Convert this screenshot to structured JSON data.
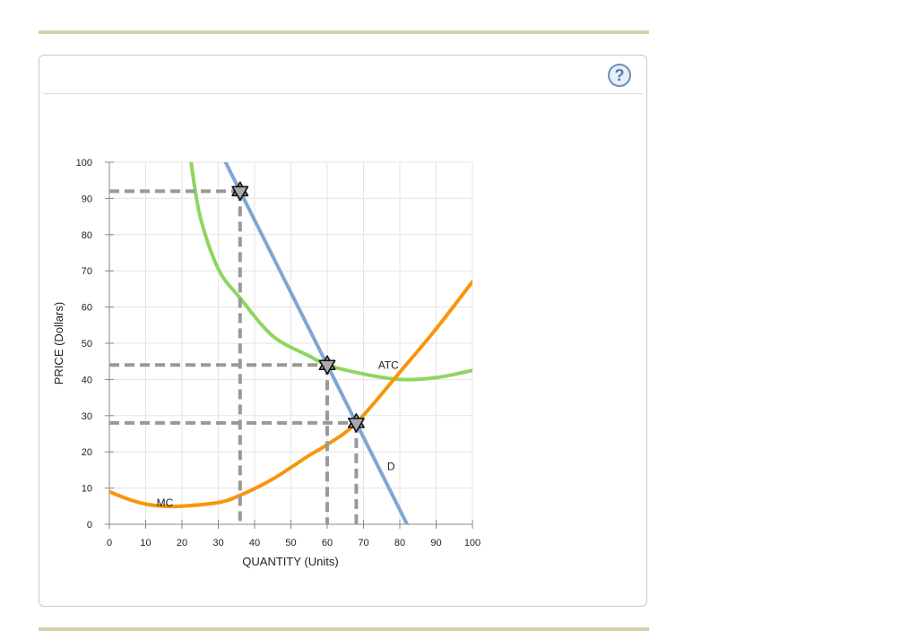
{
  "help_label": "?",
  "chart_data": {
    "type": "line",
    "xlabel": "QUANTITY (Units)",
    "ylabel": "PRICE (Dollars)",
    "xlim": [
      0,
      100
    ],
    "ylim": [
      0,
      100
    ],
    "x_ticks": [
      0,
      10,
      20,
      30,
      40,
      50,
      60,
      70,
      80,
      90,
      100
    ],
    "y_ticks": [
      0,
      10,
      20,
      30,
      40,
      50,
      60,
      70,
      80,
      90,
      100
    ],
    "grid": true,
    "colors": {
      "D": "#7da7d4",
      "ATC": "#8dd65f",
      "MC": "#f7960a",
      "guide": "#999999",
      "grid": "#e5e5e5"
    },
    "series": [
      {
        "name": "D",
        "points": [
          [
            32,
            100
          ],
          [
            82,
            0
          ]
        ]
      },
      {
        "name": "ATC",
        "points": [
          [
            22.5,
            100
          ],
          [
            25,
            85
          ],
          [
            30,
            70.5
          ],
          [
            36,
            62.5
          ],
          [
            45,
            52
          ],
          [
            55,
            46.5
          ],
          [
            60,
            44
          ],
          [
            70,
            41.5
          ],
          [
            80,
            40
          ],
          [
            90,
            40.5
          ],
          [
            100,
            42.5
          ]
        ]
      },
      {
        "name": "MC",
        "points": [
          [
            0,
            9
          ],
          [
            5,
            7
          ],
          [
            10,
            5.6
          ],
          [
            15,
            5
          ],
          [
            20,
            5
          ],
          [
            30,
            6
          ],
          [
            36,
            8
          ],
          [
            45,
            12.5
          ],
          [
            55,
            19
          ],
          [
            60,
            22
          ],
          [
            68,
            28
          ],
          [
            80,
            42
          ],
          [
            90,
            54
          ],
          [
            100,
            67
          ]
        ]
      }
    ],
    "series_labels": [
      {
        "name": "ATC",
        "x": 74,
        "y": 43
      },
      {
        "name": "D",
        "x": 76.5,
        "y": 15
      },
      {
        "name": "MC",
        "x": 13,
        "y": 5
      }
    ],
    "markers": [
      {
        "x": 36,
        "y": 92
      },
      {
        "x": 60,
        "y": 44
      },
      {
        "x": 68,
        "y": 28
      }
    ]
  }
}
